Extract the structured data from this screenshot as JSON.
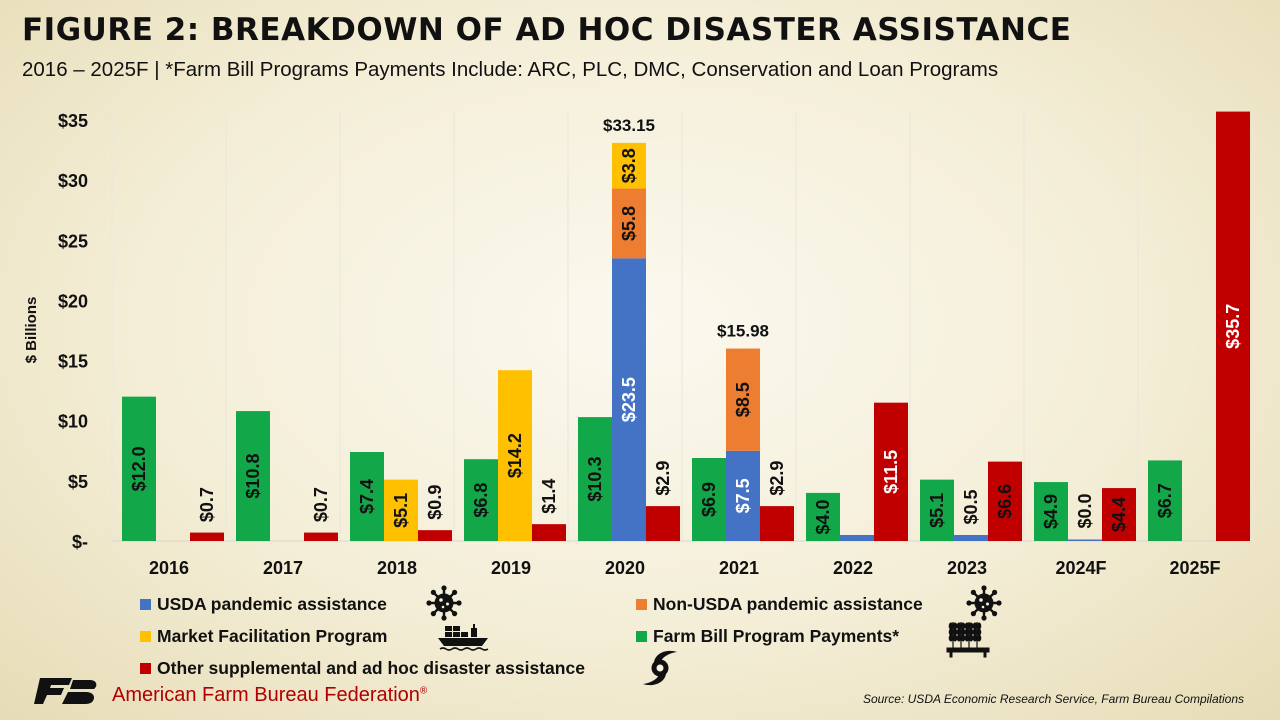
{
  "header": {
    "title": "FIGURE 2: BREAKDOWN OF AD HOC DISASTER ASSISTANCE",
    "subtitle": "2016 – 2025F | *Farm Bill Programs Payments Include: ARC, PLC, DMC, Conservation and Loan Programs"
  },
  "chart_data": {
    "type": "bar",
    "ylabel": "$ Billions",
    "ylim": [
      0,
      35
    ],
    "yticks": [
      {
        "value": 0,
        "label": "$-"
      },
      {
        "value": 5,
        "label": "$5"
      },
      {
        "value": 10,
        "label": "$10"
      },
      {
        "value": 15,
        "label": "$15"
      },
      {
        "value": 20,
        "label": "$20"
      },
      {
        "value": 25,
        "label": "$25"
      },
      {
        "value": 30,
        "label": "$30"
      },
      {
        "value": 35,
        "label": "$35"
      }
    ],
    "categories": [
      "2016",
      "2017",
      "2018",
      "2019",
      "2020",
      "2021",
      "2022",
      "2023",
      "2024F",
      "2025F"
    ],
    "grid": "vertical category separators",
    "legend_position": "bottom",
    "series": [
      {
        "key": "farm_bill",
        "name": "Farm Bill Program Payments*",
        "color": "#12a84a",
        "values": [
          12.0,
          10.8,
          7.4,
          6.8,
          10.3,
          6.9,
          4.0,
          5.1,
          4.9,
          6.7
        ]
      },
      {
        "key": "usda_pandemic",
        "name": "USDA pandemic assistance",
        "color": "#4472c4",
        "values": [
          0,
          0,
          0,
          0,
          23.5,
          7.5,
          0.5,
          0.5,
          0.0,
          0.0
        ]
      },
      {
        "key": "non_usda_pandemic",
        "name": "Non-USDA pandemic assistance",
        "color": "#ed7d31",
        "values": [
          0,
          0,
          0,
          0,
          5.8,
          8.5,
          0,
          0,
          0,
          0
        ]
      },
      {
        "key": "mfp",
        "name": "Market Facilitation Program",
        "color": "#ffc000",
        "values": [
          0,
          0,
          5.1,
          14.2,
          3.8,
          0,
          0,
          0,
          0,
          0
        ]
      },
      {
        "key": "other",
        "name": "Other supplemental and ad hoc disaster assistance",
        "color": "#c00000",
        "values": [
          0.7,
          0.7,
          0.9,
          1.4,
          2.9,
          2.9,
          11.5,
          6.6,
          4.4,
          35.7
        ]
      }
    ],
    "bar_labels": [
      {
        "category": "2016",
        "series": "farm_bill",
        "label": "$12.0"
      },
      {
        "category": "2016",
        "series": "other",
        "label": "$0.7"
      },
      {
        "category": "2017",
        "series": "farm_bill",
        "label": "$10.8"
      },
      {
        "category": "2017",
        "series": "other",
        "label": "$0.7"
      },
      {
        "category": "2018",
        "series": "farm_bill",
        "label": "$7.4"
      },
      {
        "category": "2018",
        "series": "mfp",
        "label": "$5.1"
      },
      {
        "category": "2018",
        "series": "other",
        "label": "$0.9"
      },
      {
        "category": "2019",
        "series": "farm_bill",
        "label": "$6.8"
      },
      {
        "category": "2019",
        "series": "mfp",
        "label": "$14.2"
      },
      {
        "category": "2019",
        "series": "other",
        "label": "$1.4"
      },
      {
        "category": "2020",
        "series": "farm_bill",
        "label": "$10.3"
      },
      {
        "category": "2020",
        "series": "usda_pandemic",
        "label": "$23.5"
      },
      {
        "category": "2020",
        "series": "non_usda_pandemic",
        "label": "$5.8"
      },
      {
        "category": "2020",
        "series": "mfp",
        "label": "$3.8"
      },
      {
        "category": "2020",
        "series": "other",
        "label": "$2.9"
      },
      {
        "category": "2021",
        "series": "farm_bill",
        "label": "$6.9"
      },
      {
        "category": "2021",
        "series": "usda_pandemic",
        "label": "$7.5"
      },
      {
        "category": "2021",
        "series": "non_usda_pandemic",
        "label": "$8.5"
      },
      {
        "category": "2021",
        "series": "other",
        "label": "$2.9"
      },
      {
        "category": "2022",
        "series": "farm_bill",
        "label": "$4.0"
      },
      {
        "category": "2022",
        "series": "other",
        "label": "$11.5"
      },
      {
        "category": "2023",
        "series": "farm_bill",
        "label": "$5.1"
      },
      {
        "category": "2023",
        "series": "usda_pandemic",
        "label": "$0.5"
      },
      {
        "category": "2023",
        "series": "other",
        "label": "$6.6"
      },
      {
        "category": "2024F",
        "series": "farm_bill",
        "label": "$4.9"
      },
      {
        "category": "2024F",
        "series": "usda_pandemic",
        "label": "$0.0"
      },
      {
        "category": "2024F",
        "series": "other",
        "label": "$4.4"
      },
      {
        "category": "2025F",
        "series": "farm_bill",
        "label": "$6.7"
      },
      {
        "category": "2025F",
        "series": "other",
        "label": "$35.7"
      }
    ],
    "totals": [
      {
        "category": "2020",
        "label": "$33.15"
      },
      {
        "category": "2021",
        "label": "$15.98"
      }
    ]
  },
  "legend": {
    "items": [
      {
        "series": "usda_pandemic",
        "label": "USDA pandemic assistance",
        "icon": "virus-icon"
      },
      {
        "series": "non_usda_pandemic",
        "label": "Non-USDA pandemic assistance",
        "icon": "virus-icon"
      },
      {
        "series": "mfp",
        "label": "Market Facilitation Program",
        "icon": "cargo-ship-icon"
      },
      {
        "series": "farm_bill",
        "label": "Farm Bill Program Payments*",
        "icon": "wheat-icon"
      },
      {
        "series": "other",
        "label": "Other supplemental and ad hoc disaster assistance",
        "icon": "hurricane-icon"
      }
    ]
  },
  "footer": {
    "brand": "American Farm Bureau Federation",
    "registered_mark": "®",
    "logo_letters": "FB",
    "source": "Source: USDA Economic Research Service, Farm Bureau Compilations",
    "brand_color": "#b00000"
  }
}
